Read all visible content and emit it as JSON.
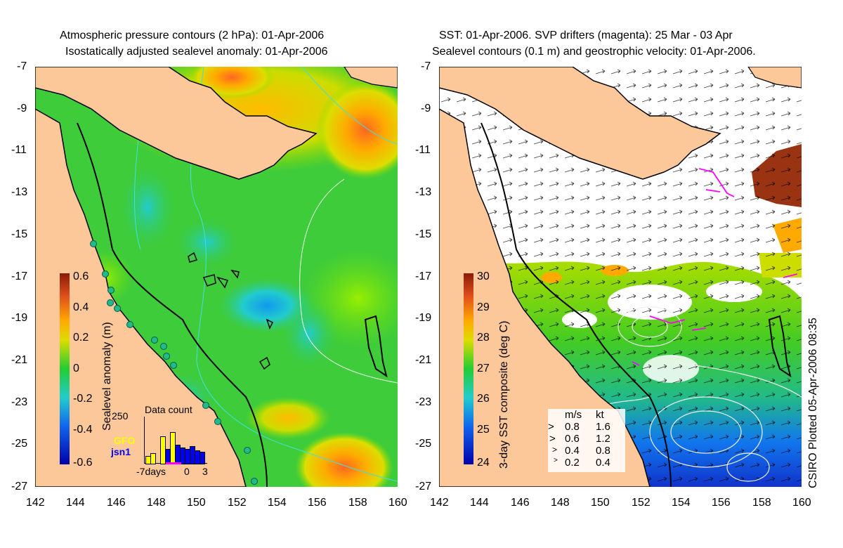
{
  "left_panel": {
    "title_line1": "Atmospheric pressure contours (2 hPa): 01-Apr-2006",
    "title_line2": "Isostatically adjusted sealevel anomaly: 01-Apr-2006",
    "colorbar": {
      "label": "Sealevel anomaly (m)",
      "ticks": [
        "0.6",
        "0.4",
        "0.2",
        "0",
        "-0.2",
        "-0.4",
        "-0.6"
      ]
    },
    "inset": {
      "title": "Data count",
      "ymax": "250",
      "series": [
        {
          "name": "GFO",
          "color": "#ffff00"
        },
        {
          "name": "jsn1",
          "color": "#0000ff"
        }
      ],
      "xlabels": [
        "-7days",
        "0",
        "3"
      ]
    }
  },
  "right_panel": {
    "title_line1": "SST: 01-Apr-2006. SVP drifters (magenta): 25 Mar - 03 Apr",
    "title_line2": "Sealevel contours (0.1 m) and geostrophic velocity: 01-Apr-2006.",
    "colorbar": {
      "label": "3-day SST composite (deg C)",
      "ticks": [
        "30",
        "29",
        "28",
        "27",
        "26",
        "25",
        "24"
      ]
    },
    "velocity_legend": {
      "header_ms": "m/s",
      "header_kt": "kt",
      "rows": [
        {
          "ms": "0.8",
          "kt": "1.6"
        },
        {
          "ms": "0.6",
          "kt": "1.2"
        },
        {
          "ms": "0.4",
          "kt": "0.8"
        },
        {
          "ms": "0.2",
          "kt": "0.4"
        }
      ]
    }
  },
  "axes": {
    "lat_ticks": [
      "-7",
      "-9",
      "-11",
      "-13",
      "-15",
      "-17",
      "-19",
      "-21",
      "-23",
      "-25",
      "-27"
    ],
    "lon_ticks": [
      "142",
      "144",
      "146",
      "148",
      "150",
      "152",
      "154",
      "156",
      "158",
      "160"
    ]
  },
  "credit": "CSIRO Plotted 05-Apr-2006 08:35",
  "colors": {
    "land": "#fcc89a",
    "sla_zero": "#22cc22",
    "sst_ocean_warm": "#44cc22",
    "cloud": "#ffffff",
    "drifter": "#ff00ff"
  }
}
